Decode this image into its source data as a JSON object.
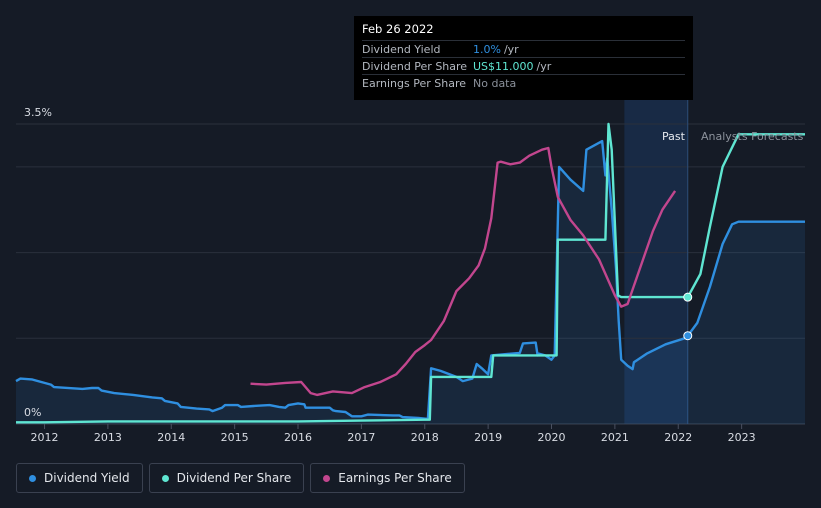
{
  "chart_data": {
    "type": "line",
    "y_axis": {
      "top_label": "3.5%",
      "bottom_label": "0%",
      "ylim": [
        0,
        3.5
      ]
    },
    "x_ticks": [
      "2012",
      "2013",
      "2014",
      "2015",
      "2016",
      "2017",
      "2018",
      "2019",
      "2020",
      "2021",
      "2022",
      "2023"
    ],
    "xlim": [
      2011.55,
      2024.0
    ],
    "regions": {
      "past_label": "Past",
      "forecast_label": "Analysts Forecasts",
      "past_start": 2021.15,
      "split": 2022.15
    },
    "series": [
      {
        "name": "Dividend Yield",
        "color": "#2f8fe0",
        "filled": true,
        "points": [
          [
            2011.55,
            0.5
          ],
          [
            2011.62,
            0.53
          ],
          [
            2011.8,
            0.52
          ],
          [
            2012.0,
            0.48
          ],
          [
            2012.1,
            0.46
          ],
          [
            2012.15,
            0.43
          ],
          [
            2012.6,
            0.41
          ],
          [
            2012.75,
            0.42
          ],
          [
            2012.85,
            0.42
          ],
          [
            2012.9,
            0.39
          ],
          [
            2013.1,
            0.36
          ],
          [
            2013.4,
            0.34
          ],
          [
            2013.7,
            0.31
          ],
          [
            2013.85,
            0.3
          ],
          [
            2013.9,
            0.27
          ],
          [
            2014.1,
            0.24
          ],
          [
            2014.15,
            0.2
          ],
          [
            2014.4,
            0.18
          ],
          [
            2014.6,
            0.17
          ],
          [
            2014.65,
            0.15
          ],
          [
            2014.8,
            0.19
          ],
          [
            2014.85,
            0.22
          ],
          [
            2015.05,
            0.22
          ],
          [
            2015.1,
            0.2
          ],
          [
            2015.3,
            0.21
          ],
          [
            2015.55,
            0.22
          ],
          [
            2015.7,
            0.2
          ],
          [
            2015.8,
            0.19
          ],
          [
            2015.85,
            0.22
          ],
          [
            2016.0,
            0.24
          ],
          [
            2016.1,
            0.23
          ],
          [
            2016.12,
            0.19
          ],
          [
            2016.5,
            0.19
          ],
          [
            2016.55,
            0.16
          ],
          [
            2016.6,
            0.15
          ],
          [
            2016.75,
            0.14
          ],
          [
            2016.85,
            0.09
          ],
          [
            2017.0,
            0.09
          ],
          [
            2017.1,
            0.11
          ],
          [
            2017.5,
            0.1
          ],
          [
            2017.6,
            0.1
          ],
          [
            2017.65,
            0.08
          ],
          [
            2017.9,
            0.07
          ],
          [
            2018.05,
            0.06
          ],
          [
            2018.1,
            0.65
          ],
          [
            2018.25,
            0.62
          ],
          [
            2018.5,
            0.55
          ],
          [
            2018.6,
            0.5
          ],
          [
            2018.75,
            0.53
          ],
          [
            2018.82,
            0.7
          ],
          [
            2018.9,
            0.65
          ],
          [
            2019.0,
            0.58
          ],
          [
            2019.05,
            0.8
          ],
          [
            2019.2,
            0.81
          ],
          [
            2019.5,
            0.83
          ],
          [
            2019.55,
            0.94
          ],
          [
            2019.75,
            0.95
          ],
          [
            2019.78,
            0.8
          ],
          [
            2019.8,
            0.82
          ],
          [
            2019.9,
            0.8
          ],
          [
            2020.0,
            0.75
          ],
          [
            2020.05,
            0.8
          ],
          [
            2020.12,
            3.0
          ],
          [
            2020.3,
            2.85
          ],
          [
            2020.5,
            2.72
          ],
          [
            2020.55,
            3.2
          ],
          [
            2020.8,
            3.3
          ],
          [
            2020.85,
            2.9
          ],
          [
            2020.88,
            3.1
          ],
          [
            2020.95,
            2.5
          ],
          [
            2021.02,
            1.8
          ],
          [
            2021.06,
            1.2
          ],
          [
            2021.1,
            0.75
          ],
          [
            2021.2,
            0.68
          ],
          [
            2021.28,
            0.64
          ],
          [
            2021.3,
            0.72
          ],
          [
            2021.5,
            0.82
          ],
          [
            2021.8,
            0.93
          ],
          [
            2022.1,
            1.0
          ],
          [
            2022.15,
            1.03
          ],
          [
            2022.3,
            1.18
          ],
          [
            2022.5,
            1.6
          ],
          [
            2022.7,
            2.1
          ],
          [
            2022.85,
            2.33
          ],
          [
            2022.95,
            2.36
          ],
          [
            2024.0,
            2.36
          ]
        ]
      },
      {
        "name": "Dividend Per Share",
        "color": "#5fe6d2",
        "filled": false,
        "points": [
          [
            2011.55,
            0.02
          ],
          [
            2012.0,
            0.02
          ],
          [
            2013.0,
            0.03
          ],
          [
            2014.0,
            0.03
          ],
          [
            2015.0,
            0.03
          ],
          [
            2016.0,
            0.03
          ],
          [
            2017.0,
            0.04
          ],
          [
            2018.0,
            0.05
          ],
          [
            2018.08,
            0.05
          ],
          [
            2018.1,
            0.55
          ],
          [
            2018.95,
            0.55
          ],
          [
            2019.05,
            0.55
          ],
          [
            2019.08,
            0.8
          ],
          [
            2019.95,
            0.8
          ],
          [
            2020.08,
            0.8
          ],
          [
            2020.1,
            2.15
          ],
          [
            2020.8,
            2.15
          ],
          [
            2020.85,
            2.15
          ],
          [
            2020.9,
            3.5
          ],
          [
            2020.95,
            3.2
          ],
          [
            2021.05,
            1.5
          ],
          [
            2021.1,
            1.48
          ],
          [
            2022.15,
            1.48
          ],
          [
            2022.35,
            1.75
          ],
          [
            2022.5,
            2.3
          ],
          [
            2022.7,
            3.0
          ],
          [
            2022.95,
            3.38
          ],
          [
            2024.0,
            3.38
          ]
        ]
      },
      {
        "name": "Earnings Per Share",
        "color": "#c2468e",
        "filled": false,
        "points": [
          [
            2015.25,
            0.47
          ],
          [
            2015.5,
            0.46
          ],
          [
            2015.8,
            0.48
          ],
          [
            2016.05,
            0.49
          ],
          [
            2016.2,
            0.36
          ],
          [
            2016.3,
            0.34
          ],
          [
            2016.55,
            0.38
          ],
          [
            2016.85,
            0.36
          ],
          [
            2017.05,
            0.43
          ],
          [
            2017.3,
            0.49
          ],
          [
            2017.55,
            0.58
          ],
          [
            2017.7,
            0.7
          ],
          [
            2017.85,
            0.84
          ],
          [
            2018.0,
            0.92
          ],
          [
            2018.1,
            0.98
          ],
          [
            2018.3,
            1.2
          ],
          [
            2018.5,
            1.55
          ],
          [
            2018.7,
            1.7
          ],
          [
            2018.85,
            1.85
          ],
          [
            2018.95,
            2.05
          ],
          [
            2019.05,
            2.4
          ],
          [
            2019.15,
            3.05
          ],
          [
            2019.2,
            3.06
          ],
          [
            2019.35,
            3.03
          ],
          [
            2019.5,
            3.05
          ],
          [
            2019.65,
            3.13
          ],
          [
            2019.85,
            3.2
          ],
          [
            2019.95,
            3.22
          ],
          [
            2020.0,
            3.0
          ],
          [
            2020.1,
            2.65
          ],
          [
            2020.3,
            2.38
          ],
          [
            2020.5,
            2.2
          ],
          [
            2020.75,
            1.92
          ],
          [
            2021.0,
            1.5
          ],
          [
            2021.1,
            1.37
          ],
          [
            2021.2,
            1.4
          ],
          [
            2021.35,
            1.72
          ],
          [
            2021.6,
            2.25
          ],
          [
            2021.75,
            2.5
          ],
          [
            2021.95,
            2.72
          ]
        ]
      }
    ],
    "markers": [
      {
        "series": "Dividend Yield",
        "x": 2022.15,
        "y": 1.03
      },
      {
        "series": "Dividend Per Share",
        "x": 2022.15,
        "y": 1.48
      }
    ]
  },
  "tooltip": {
    "date": "Feb 26 2022",
    "rows": [
      {
        "label": "Dividend Yield",
        "value": "1.0%",
        "suffix": " /yr",
        "value_color": "#2f8fe0"
      },
      {
        "label": "Dividend Per Share",
        "value": "US$11.000",
        "suffix": " /yr",
        "value_color": "#5fe6d2"
      },
      {
        "label": "Earnings Per Share",
        "value": "No data",
        "suffix": "",
        "value_color": "#8a909a"
      }
    ]
  },
  "legend": [
    {
      "label": "Dividend Yield",
      "color": "#2f8fe0"
    },
    {
      "label": "Dividend Per Share",
      "color": "#5fe6d2"
    },
    {
      "label": "Earnings Per Share",
      "color": "#c2468e"
    }
  ]
}
